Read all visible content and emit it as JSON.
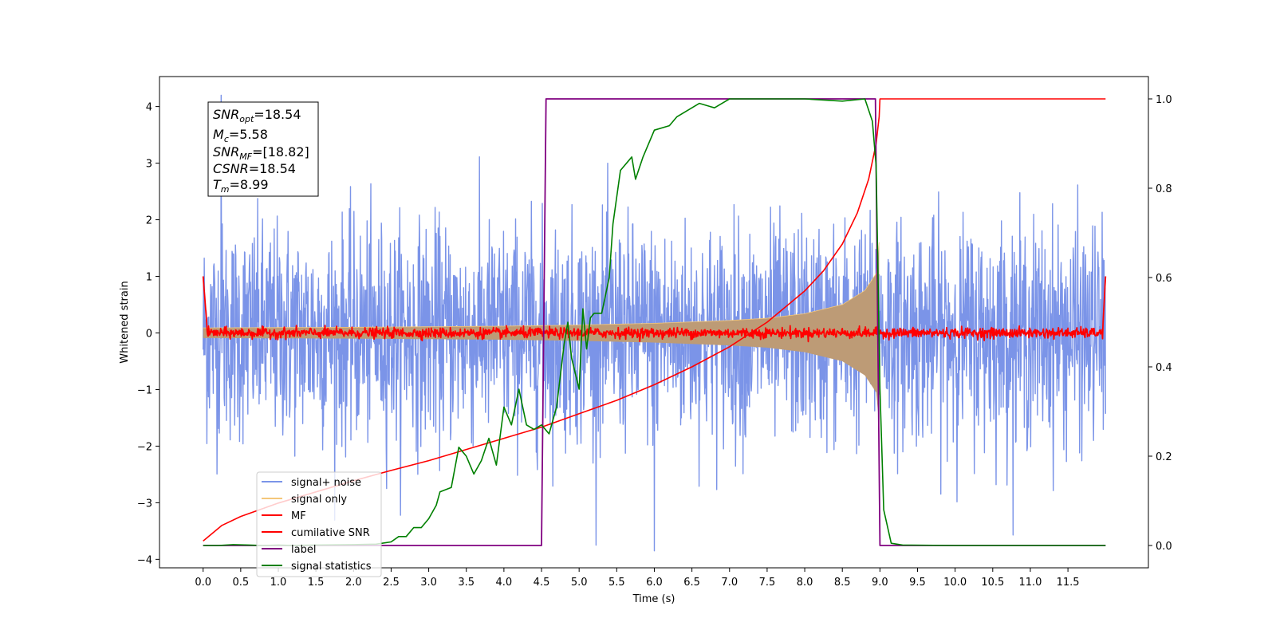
{
  "chart_data": {
    "type": "line",
    "title": "",
    "xlabel": "Time (s)",
    "ylabel": "Whitened strain",
    "y2label": "",
    "xlim": [
      -0.58,
      12.57
    ],
    "ylim": [
      -4.15,
      4.53
    ],
    "y2lim": [
      -0.05,
      1.05
    ],
    "x_ticks": [
      0.0,
      0.5,
      1.0,
      1.5,
      2.0,
      2.5,
      3.0,
      3.5,
      4.0,
      4.5,
      5.0,
      5.5,
      6.0,
      6.5,
      7.0,
      7.5,
      8.0,
      8.5,
      9.0,
      9.5,
      10.0,
      10.5,
      11.0,
      11.5
    ],
    "x_tick_labels": [
      "0.0",
      "0.5",
      "1.0",
      "1.5",
      "2.0",
      "2.5",
      "3.0",
      "3.5",
      "4.0",
      "4.5",
      "5.0",
      "5.5",
      "6.0",
      "6.5",
      "7.0",
      "7.5",
      "8.0",
      "8.5",
      "9.0",
      "9.5",
      "10.0",
      "10.5",
      "11.0",
      "11.5"
    ],
    "y_ticks": [
      -4,
      -3,
      -2,
      -1,
      0,
      1,
      2,
      3,
      4
    ],
    "y_tick_labels": [
      "−4",
      "−3",
      "−2",
      "−1",
      "0",
      "1",
      "2",
      "3",
      "4"
    ],
    "y2_ticks": [
      0.0,
      0.2,
      0.4,
      0.6,
      0.8,
      1.0
    ],
    "y2_tick_labels": [
      "0.0",
      "0.2",
      "0.4",
      "0.6",
      "0.8",
      "1.0"
    ],
    "grid": false,
    "legend_position": "lower-left",
    "annotation": {
      "lines": [
        {
          "base": "SNR",
          "sub": "opt",
          "value": "=18.54"
        },
        {
          "base": "M",
          "sub": "c",
          "value": "=5.58"
        },
        {
          "base": "SNR",
          "sub": "MF",
          "value": "=[18.82]"
        },
        {
          "base": "CSNR",
          "sub": "",
          "value": "=18.54"
        },
        {
          "base": "T",
          "sub": "m",
          "value": "=8.99"
        }
      ]
    },
    "series": [
      {
        "name": "signal+ noise",
        "color": "#7b94e8",
        "axis": "left",
        "kind": "noise",
        "x_range": [
          0.0,
          12.0
        ],
        "std": 0.95,
        "peak_extremes": [
          4.2,
          -3.85
        ]
      },
      {
        "name": "signal only",
        "color": "#f4c77a",
        "fill_color": "#bd9b76",
        "axis": "left",
        "kind": "chirp_envelope",
        "envelope": [
          [
            0.0,
            0.09
          ],
          [
            2.0,
            0.1
          ],
          [
            4.0,
            0.12
          ],
          [
            5.0,
            0.14
          ],
          [
            6.0,
            0.17
          ],
          [
            7.0,
            0.22
          ],
          [
            7.5,
            0.26
          ],
          [
            8.0,
            0.34
          ],
          [
            8.5,
            0.5
          ],
          [
            8.8,
            0.75
          ],
          [
            8.95,
            1.05
          ],
          [
            8.99,
            1.6
          ],
          [
            9.0,
            0.0
          ]
        ]
      },
      {
        "name": "MF",
        "color": "#ff0000",
        "axis": "left",
        "kind": "mf",
        "baseline": 0.0,
        "noise": 0.045,
        "edge_peak": 1.0
      },
      {
        "name": "cumilative SNR",
        "color": "#ff0000",
        "axis": "right",
        "points": [
          [
            0.0,
            0.01
          ],
          [
            0.25,
            0.045
          ],
          [
            0.5,
            0.065
          ],
          [
            1.0,
            0.095
          ],
          [
            1.5,
            0.12
          ],
          [
            2.0,
            0.145
          ],
          [
            2.5,
            0.168
          ],
          [
            3.0,
            0.19
          ],
          [
            3.5,
            0.215
          ],
          [
            4.0,
            0.24
          ],
          [
            4.5,
            0.265
          ],
          [
            5.0,
            0.295
          ],
          [
            5.5,
            0.325
          ],
          [
            6.0,
            0.36
          ],
          [
            6.5,
            0.4
          ],
          [
            7.0,
            0.445
          ],
          [
            7.5,
            0.5
          ],
          [
            8.0,
            0.57
          ],
          [
            8.25,
            0.615
          ],
          [
            8.5,
            0.675
          ],
          [
            8.7,
            0.745
          ],
          [
            8.85,
            0.82
          ],
          [
            8.95,
            0.9
          ],
          [
            8.99,
            0.96
          ],
          [
            9.0,
            1.0
          ],
          [
            12.0,
            1.0
          ]
        ]
      },
      {
        "name": "label",
        "color": "#800080",
        "axis": "right",
        "points": [
          [
            0.0,
            0.0
          ],
          [
            4.5,
            0.0
          ],
          [
            4.56,
            1.0
          ],
          [
            8.94,
            1.0
          ],
          [
            9.0,
            0.0
          ],
          [
            12.0,
            0.0
          ]
        ]
      },
      {
        "name": "signal statistics",
        "color": "#008000",
        "axis": "right",
        "points": [
          [
            0.0,
            0.0
          ],
          [
            0.2,
            0.0
          ],
          [
            0.4,
            0.002
          ],
          [
            0.6,
            0.001
          ],
          [
            0.8,
            0.0
          ],
          [
            1.0,
            0.001
          ],
          [
            1.2,
            0.0
          ],
          [
            1.5,
            0.001
          ],
          [
            2.0,
            0.002
          ],
          [
            2.3,
            0.003
          ],
          [
            2.5,
            0.008
          ],
          [
            2.6,
            0.02
          ],
          [
            2.7,
            0.02
          ],
          [
            2.8,
            0.04
          ],
          [
            2.9,
            0.04
          ],
          [
            3.0,
            0.06
          ],
          [
            3.1,
            0.09
          ],
          [
            3.15,
            0.12
          ],
          [
            3.3,
            0.13
          ],
          [
            3.4,
            0.22
          ],
          [
            3.5,
            0.2
          ],
          [
            3.55,
            0.18
          ],
          [
            3.6,
            0.16
          ],
          [
            3.7,
            0.19
          ],
          [
            3.8,
            0.24
          ],
          [
            3.9,
            0.18
          ],
          [
            4.0,
            0.31
          ],
          [
            4.1,
            0.27
          ],
          [
            4.2,
            0.35
          ],
          [
            4.3,
            0.27
          ],
          [
            4.4,
            0.26
          ],
          [
            4.5,
            0.27
          ],
          [
            4.6,
            0.25
          ],
          [
            4.7,
            0.31
          ],
          [
            4.8,
            0.45
          ],
          [
            4.85,
            0.5
          ],
          [
            4.9,
            0.42
          ],
          [
            5.0,
            0.35
          ],
          [
            5.05,
            0.53
          ],
          [
            5.1,
            0.44
          ],
          [
            5.15,
            0.51
          ],
          [
            5.2,
            0.52
          ],
          [
            5.3,
            0.52
          ],
          [
            5.4,
            0.6
          ],
          [
            5.45,
            0.72
          ],
          [
            5.55,
            0.84
          ],
          [
            5.7,
            0.87
          ],
          [
            5.75,
            0.82
          ],
          [
            5.85,
            0.87
          ],
          [
            6.0,
            0.93
          ],
          [
            6.2,
            0.94
          ],
          [
            6.3,
            0.96
          ],
          [
            6.4,
            0.97
          ],
          [
            6.6,
            0.99
          ],
          [
            6.8,
            0.98
          ],
          [
            7.0,
            1.0
          ],
          [
            7.5,
            1.0
          ],
          [
            8.0,
            1.0
          ],
          [
            8.5,
            0.995
          ],
          [
            8.8,
            1.0
          ],
          [
            8.9,
            0.95
          ],
          [
            8.95,
            0.85
          ],
          [
            9.0,
            0.35
          ],
          [
            9.05,
            0.08
          ],
          [
            9.15,
            0.005
          ],
          [
            9.3,
            0.001
          ],
          [
            10.0,
            0.0
          ],
          [
            12.0,
            0.0
          ]
        ]
      }
    ]
  }
}
